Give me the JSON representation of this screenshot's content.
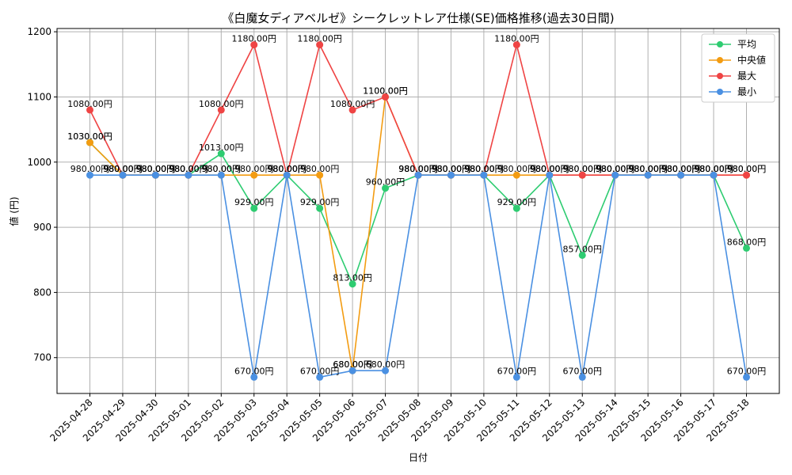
{
  "chart_data": {
    "type": "line",
    "title": "《白魔女ディアベルゼ》シークレットレア仕様(SE)価格推移(過去30日間)",
    "xlabel": "日付",
    "ylabel": "値 (円)",
    "ylim": [
      645,
      1205
    ],
    "yticks": [
      700,
      800,
      900,
      1000,
      1100,
      1200
    ],
    "grid": true,
    "legend_position": "top-right",
    "label_suffix": "円",
    "categories": [
      "2025-04-28",
      "2025-04-29",
      "2025-04-30",
      "2025-05-01",
      "2025-05-02",
      "2025-05-03",
      "2025-05-04",
      "2025-05-05",
      "2025-05-06",
      "2025-05-07",
      "2025-05-08",
      "2025-05-09",
      "2025-05-10",
      "2025-05-11",
      "2025-05-12",
      "2025-05-13",
      "2025-05-14",
      "2025-05-15",
      "2025-05-16",
      "2025-05-17",
      "2025-05-18"
    ],
    "series": [
      {
        "name": "平均",
        "color": "#2ecc71",
        "values": [
          1030,
          980,
          980,
          980,
          1013,
          929,
          980,
          929,
          813,
          960,
          980,
          980,
          980,
          929,
          980,
          857,
          980,
          980,
          980,
          980,
          868
        ]
      },
      {
        "name": "中央値",
        "color": "#f39c12",
        "values": [
          1030,
          980,
          980,
          980,
          980,
          980,
          980,
          980,
          680,
          1100,
          980,
          980,
          980,
          980,
          980,
          980,
          980,
          980,
          980,
          980,
          980
        ]
      },
      {
        "name": "最大",
        "color": "#ef4444",
        "values": [
          1080,
          980,
          980,
          980,
          1080,
          1180,
          980,
          1180,
          1080,
          1100,
          980,
          980,
          980,
          1180,
          980,
          980,
          980,
          980,
          980,
          980,
          980
        ]
      },
      {
        "name": "最小",
        "color": "#4a90e2",
        "values": [
          980,
          980,
          980,
          980,
          980,
          670,
          980,
          670,
          680,
          680,
          980,
          980,
          980,
          670,
          980,
          670,
          980,
          980,
          980,
          980,
          670
        ]
      }
    ]
  }
}
